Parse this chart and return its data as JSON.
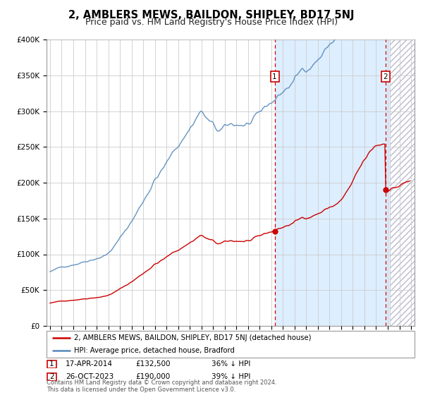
{
  "title": "2, AMBLERS MEWS, BAILDON, SHIPLEY, BD17 5NJ",
  "subtitle": "Price paid vs. HM Land Registry's House Price Index (HPI)",
  "title_fontsize": 10.5,
  "subtitle_fontsize": 9,
  "ylim": [
    0,
    400000
  ],
  "yticks": [
    0,
    50000,
    100000,
    150000,
    200000,
    250000,
    300000,
    350000,
    400000
  ],
  "ytick_labels": [
    "£0",
    "£50K",
    "£100K",
    "£150K",
    "£200K",
    "£250K",
    "£300K",
    "£350K",
    "£400K"
  ],
  "line1_color": "#cc0000",
  "line2_color": "#5588bb",
  "bg_color": "#ddeeff",
  "shaded_bg": "#ddeeff",
  "marker1_date": 2014.29,
  "marker1_value": 132500,
  "marker2_date": 2023.81,
  "marker2_value": 190000,
  "legend_line1": "2, AMBLERS MEWS, BAILDON, SHIPLEY, BD17 5NJ (detached house)",
  "legend_line2": "HPI: Average price, detached house, Bradford",
  "annot1_date": "17-APR-2014",
  "annot1_price": "£132,500",
  "annot1_hpi": "36% ↓ HPI",
  "annot2_date": "26-OCT-2023",
  "annot2_price": "£190,000",
  "annot2_hpi": "39% ↓ HPI",
  "footnote": "Contains HM Land Registry data © Crown copyright and database right 2024.\nThis data is licensed under the Open Government Licence v3.0.",
  "hatch_start": 2024.17,
  "xlim_left": 1994.7,
  "xlim_right": 2026.3
}
